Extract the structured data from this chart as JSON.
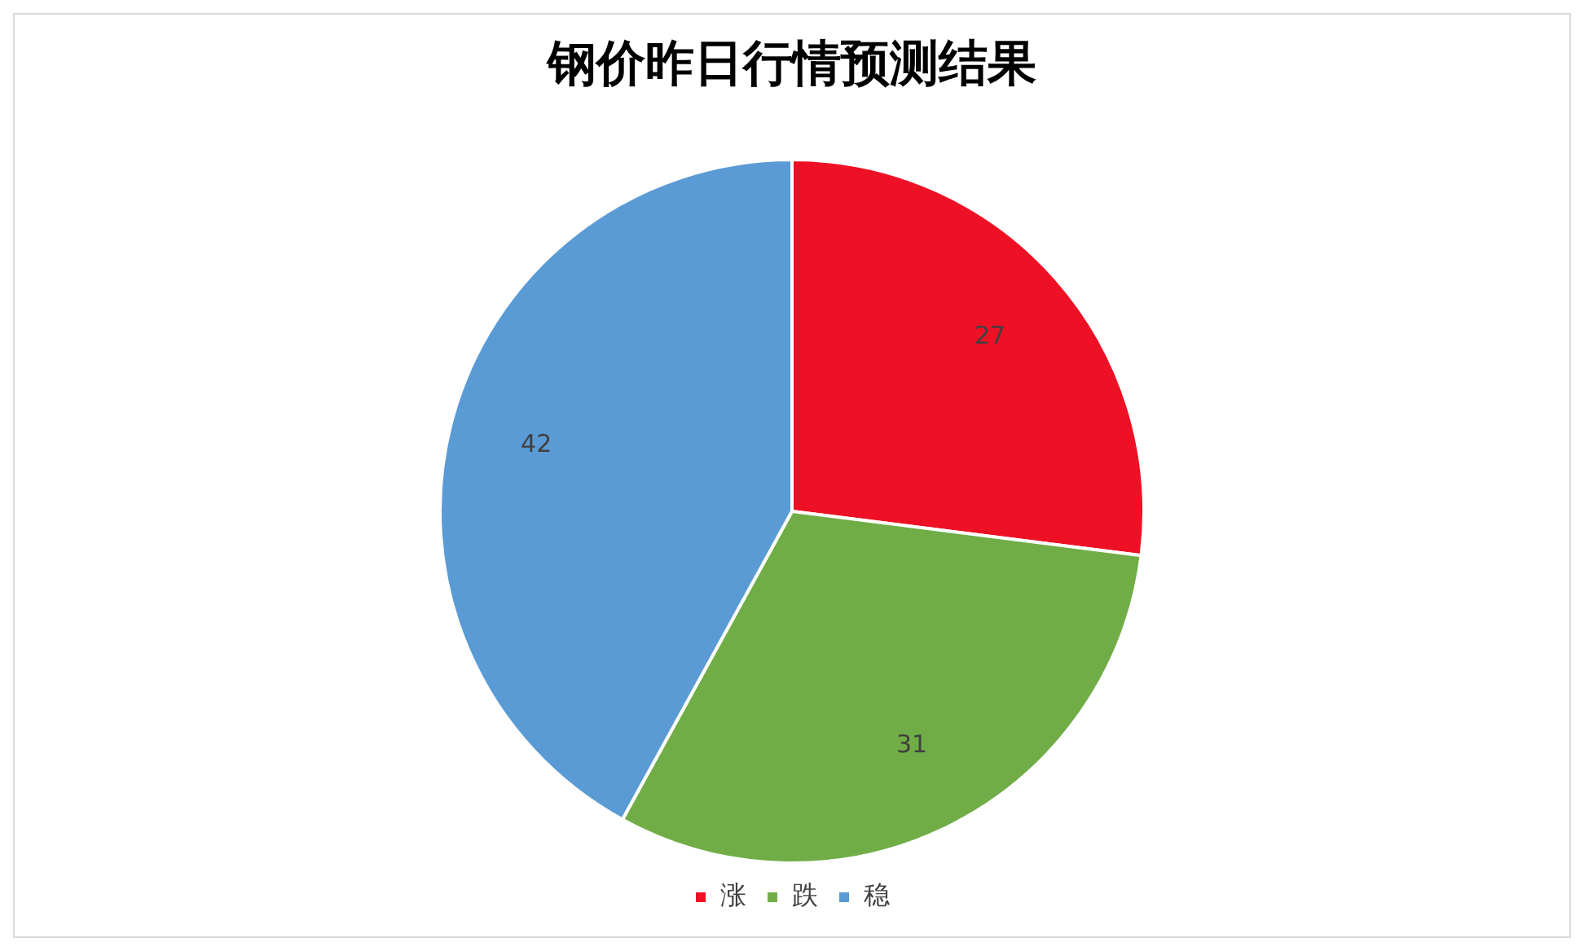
{
  "chart_data": {
    "type": "pie",
    "title": "钢价昨日行情预测结果",
    "categories": [
      "涨",
      "跌",
      "稳"
    ],
    "values": [
      27,
      31,
      42
    ],
    "colors": [
      "#ee1125",
      "#70ad47",
      "#5b9bd5"
    ],
    "data_labels": true,
    "legend": "bottom"
  }
}
